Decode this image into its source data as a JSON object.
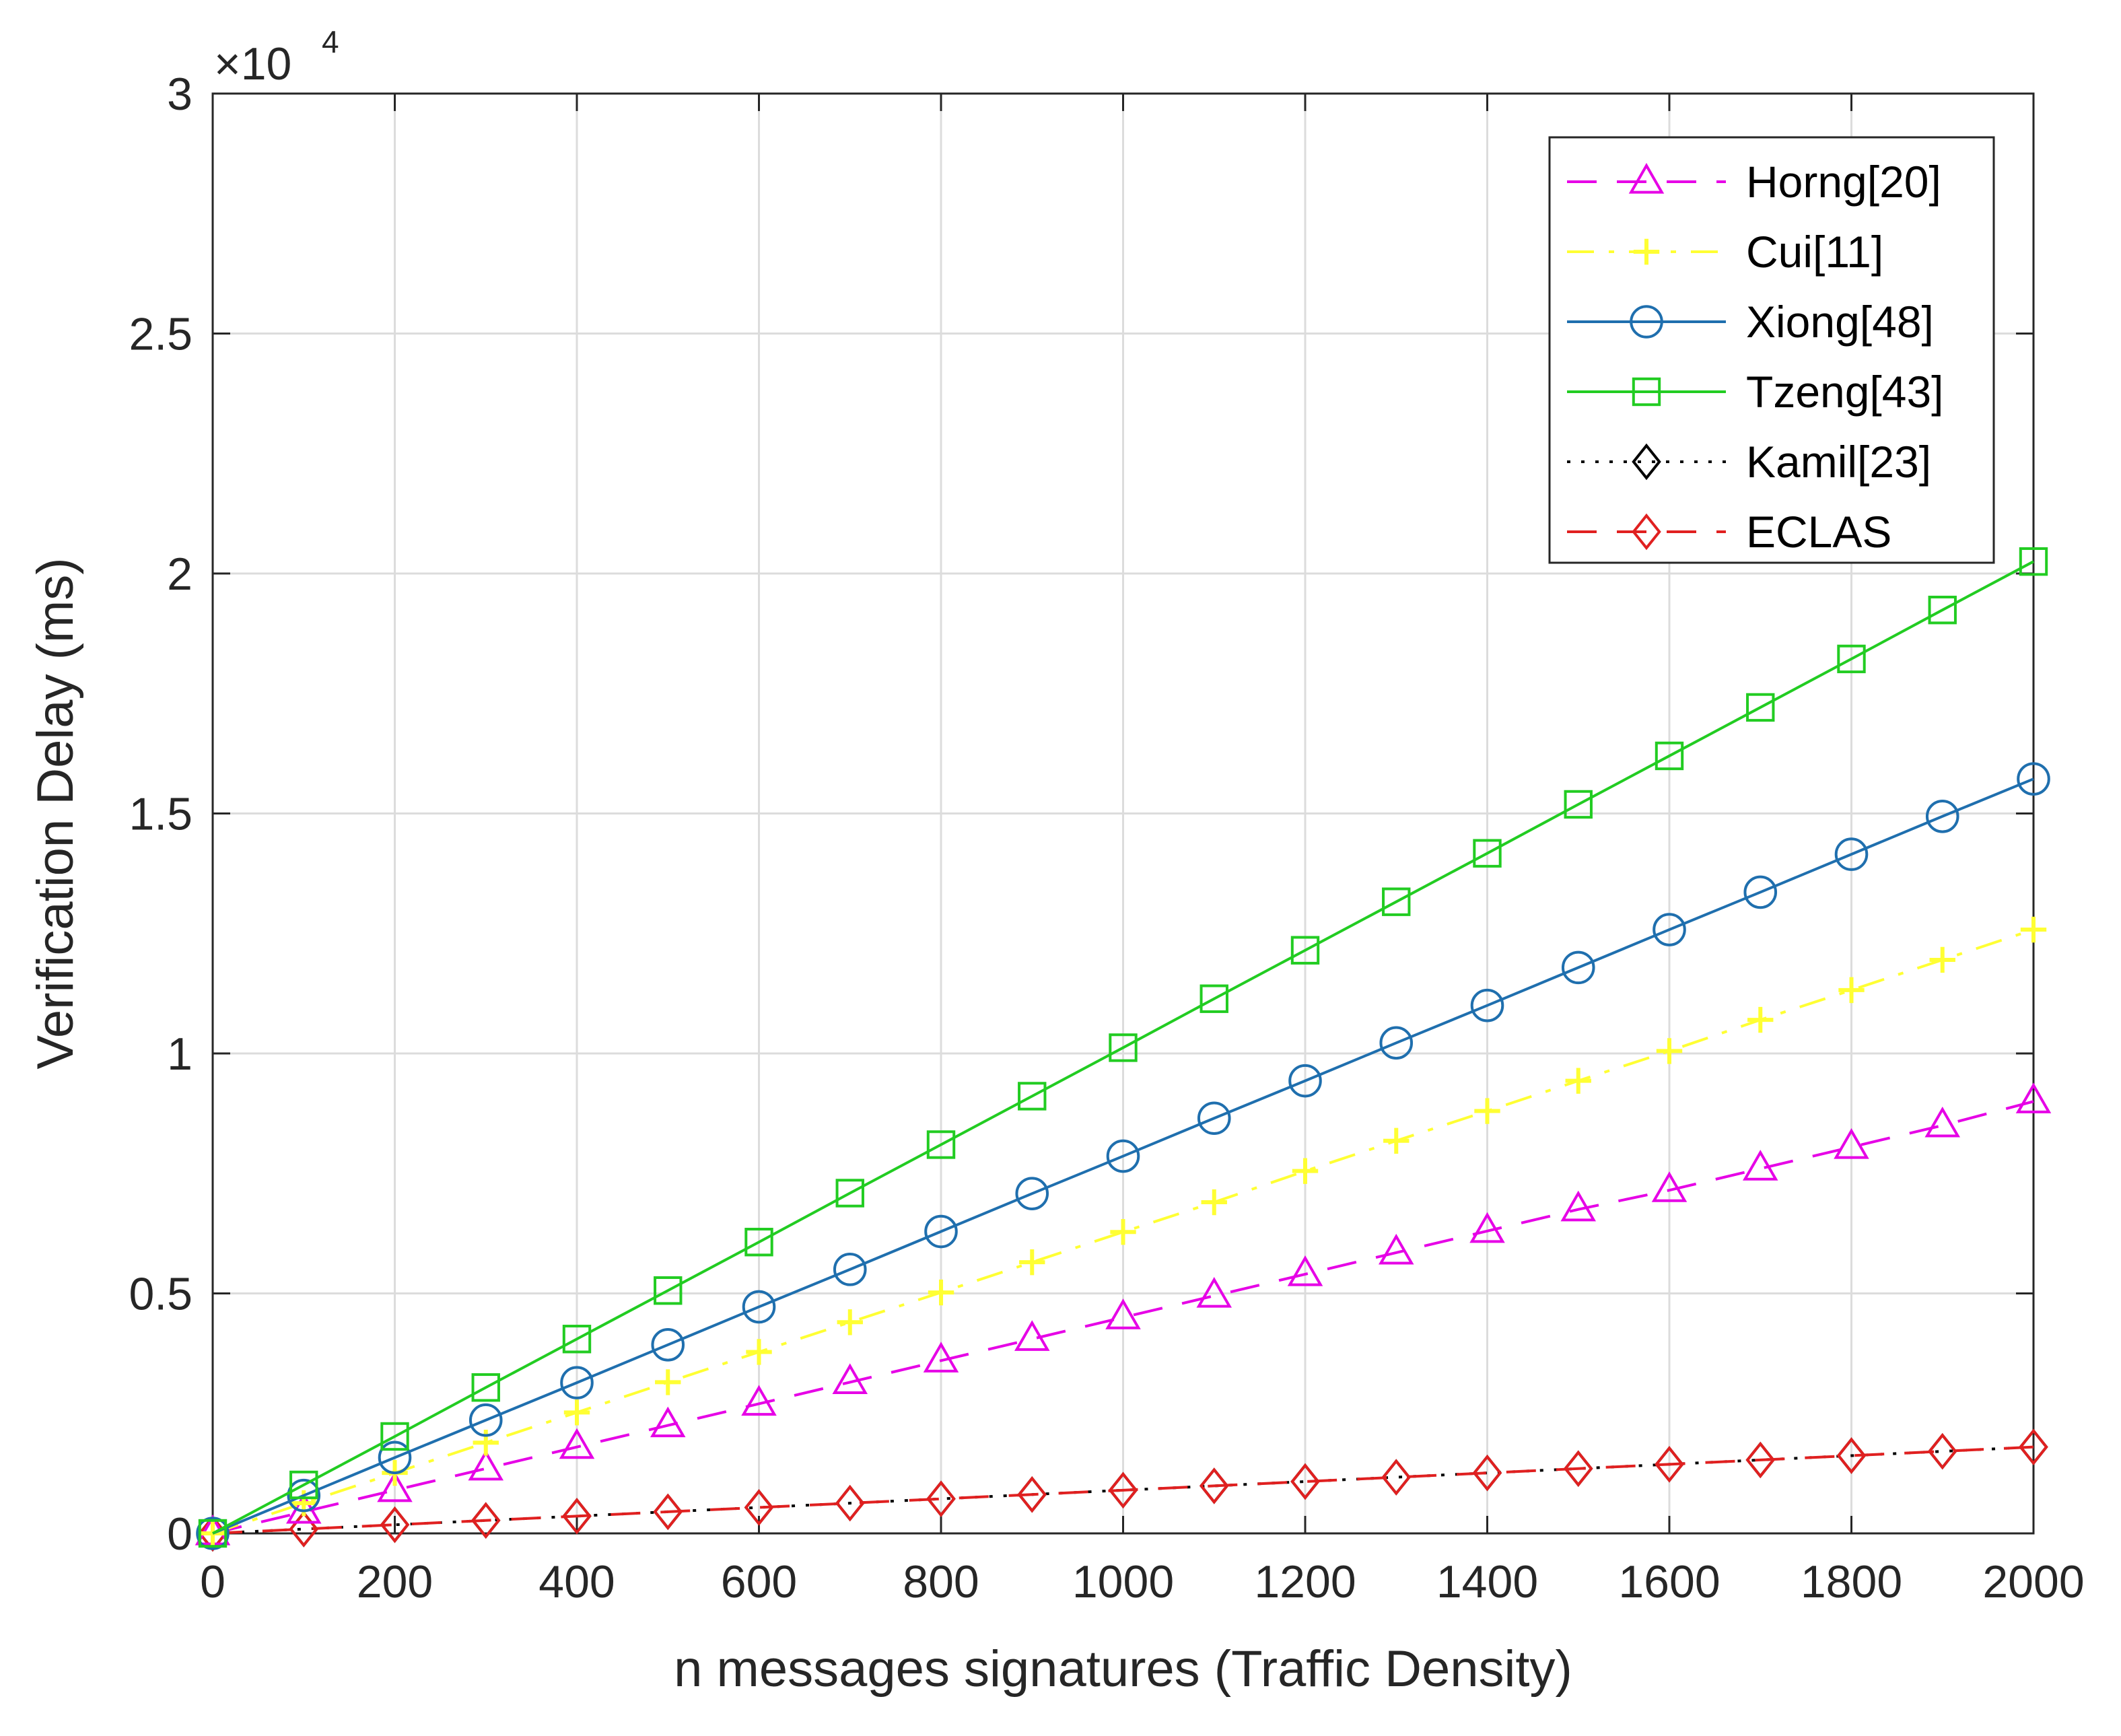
{
  "chart_data": {
    "type": "line",
    "title": "",
    "xlabel": "n messages signatures (Traffic Density)",
    "ylabel": "Verification Delay (ms)",
    "y_exponent_label": "×10",
    "y_exponent_power": "4",
    "xlim": [
      0,
      2000
    ],
    "ylim": [
      0,
      30000
    ],
    "grid": true,
    "legend_position": "top-right",
    "x_ticks": [
      0,
      200,
      400,
      600,
      800,
      1000,
      1200,
      1400,
      1600,
      1800,
      2000
    ],
    "x_tick_labels": [
      "0",
      "200",
      "400",
      "600",
      "800",
      "1000",
      "1200",
      "1400",
      "1600",
      "1800",
      "2000"
    ],
    "y_ticks": [
      0,
      5000,
      10000,
      15000,
      20000,
      25000,
      30000
    ],
    "y_tick_labels": [
      "0",
      "0.5",
      "1",
      "1.5",
      "2",
      "2.5",
      "3"
    ],
    "x": [
      0,
      100,
      200,
      300,
      400,
      500,
      600,
      700,
      800,
      900,
      1000,
      1100,
      1200,
      1300,
      1400,
      1500,
      1600,
      1700,
      1800,
      1900,
      2000
    ],
    "series": [
      {
        "name": "Horng[20]",
        "color": "#e600e6",
        "line_style": "dashed",
        "marker": "triangle",
        "values": [
          0,
          450,
          900,
          1350,
          1800,
          2250,
          2700,
          3150,
          3600,
          4050,
          4500,
          4950,
          5400,
          5850,
          6300,
          6750,
          7150,
          7600,
          8050,
          8500,
          9000
        ]
      },
      {
        "name": "Cui[11]",
        "color": "#ffff33",
        "line_style": "dashdot",
        "marker": "plus",
        "values": [
          0,
          630,
          1260,
          1890,
          2520,
          3150,
          3780,
          4400,
          5020,
          5650,
          6280,
          6900,
          7550,
          8180,
          8800,
          9430,
          10050,
          10700,
          11320,
          11950,
          12580
        ]
      },
      {
        "name": "Xiong[48]",
        "color": "#1f6fae",
        "line_style": "solid",
        "marker": "circle",
        "values": [
          0,
          790,
          1580,
          2360,
          3140,
          3930,
          4720,
          5500,
          6290,
          7080,
          7860,
          8650,
          9430,
          10220,
          11000,
          11790,
          12580,
          13360,
          14150,
          14940,
          15720
        ]
      },
      {
        "name": "Tzeng[43]",
        "color": "#22cc22",
        "line_style": "solid",
        "marker": "square",
        "values": [
          0,
          1010,
          2020,
          3040,
          4050,
          5060,
          6070,
          7090,
          8100,
          9110,
          10120,
          11140,
          12150,
          13160,
          14170,
          15190,
          16200,
          17210,
          18220,
          19240,
          20250
        ]
      },
      {
        "name": "Kamil[23]",
        "color": "#000000",
        "line_style": "dotted",
        "marker": "diamond",
        "values": [
          0,
          90,
          180,
          270,
          360,
          450,
          540,
          630,
          720,
          810,
          900,
          990,
          1080,
          1170,
          1260,
          1350,
          1440,
          1530,
          1620,
          1710,
          1800
        ]
      },
      {
        "name": "ECLAS",
        "color": "#e02020",
        "line_style": "dashed",
        "marker": "diamond",
        "values": [
          0,
          90,
          180,
          270,
          360,
          450,
          540,
          630,
          720,
          810,
          900,
          990,
          1080,
          1170,
          1260,
          1350,
          1440,
          1530,
          1620,
          1710,
          1800
        ]
      }
    ]
  }
}
